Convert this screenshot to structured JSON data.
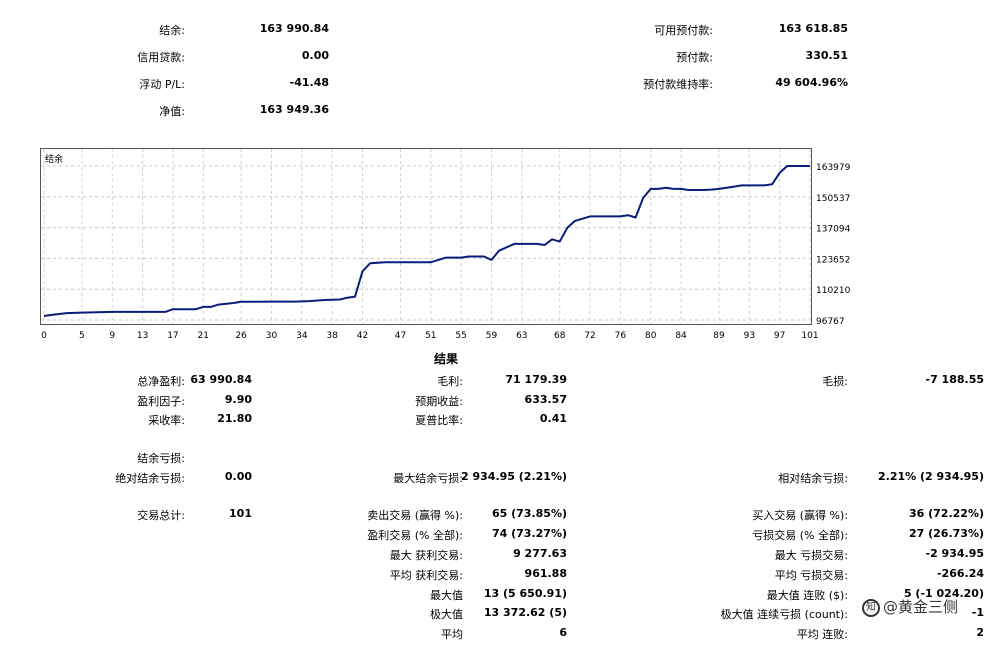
{
  "summary": {
    "balance_label": "结余:",
    "balance_value": "163 990.84",
    "credit_label": "信用贷款:",
    "credit_value": "0.00",
    "floating_label": "浮动 P/L:",
    "floating_value": "-41.48",
    "equity_label": "净值:",
    "equity_value": "163 949.36",
    "free_margin_label": "可用预付款:",
    "free_margin_value": "163 618.85",
    "margin_label": "预付款:",
    "margin_value": "330.51",
    "margin_level_label": "预付款维持率:",
    "margin_level_value": "49 604.96%"
  },
  "chart_data": {
    "type": "line",
    "legend": "结余",
    "x_ticks": [
      "0",
      "5",
      "9",
      "13",
      "17",
      "21",
      "26",
      "30",
      "34",
      "38",
      "42",
      "47",
      "51",
      "55",
      "59",
      "63",
      "68",
      "72",
      "76",
      "80",
      "84",
      "89",
      "93",
      "97",
      "101"
    ],
    "y_ticks": [
      "163979",
      "150537",
      "137094",
      "123652",
      "110210",
      "96767"
    ],
    "ylim": [
      96767,
      163979
    ],
    "xlim": [
      0,
      101
    ],
    "grid": true,
    "color": "#0b1d7a",
    "series": [
      {
        "x": [
          0,
          1,
          3,
          5,
          9,
          12,
          13,
          14,
          16,
          17,
          20,
          21,
          22,
          23,
          25,
          26,
          30,
          33,
          34,
          35,
          37,
          38,
          39,
          40,
          41,
          42,
          43,
          45,
          47,
          48,
          51,
          52,
          53,
          55,
          56,
          57,
          58,
          59,
          60,
          61,
          62,
          63,
          64,
          65,
          66,
          67,
          68,
          69,
          70,
          71,
          72,
          73,
          74,
          75,
          76,
          77,
          78,
          79,
          80,
          81,
          82,
          83,
          84,
          85,
          86,
          87,
          88,
          89,
          90,
          91,
          92,
          93,
          94,
          95,
          96,
          97,
          98,
          99,
          100,
          101
        ],
        "values": [
          98500,
          99000,
          99800,
          100000,
          100300,
          100300,
          100300,
          100300,
          100300,
          101500,
          101500,
          102500,
          102500,
          103500,
          104200,
          104700,
          104800,
          104800,
          104900,
          105000,
          105500,
          105600,
          105700,
          106500,
          107000,
          118000,
          121500,
          122000,
          122000,
          122000,
          122000,
          123000,
          124000,
          124000,
          124500,
          124500,
          124500,
          123000,
          127000,
          128500,
          130000,
          130000,
          130000,
          130000,
          129500,
          132000,
          131000,
          137000,
          140000,
          141000,
          142000,
          142000,
          142000,
          142000,
          142000,
          142500,
          141500,
          150000,
          154000,
          154000,
          154500,
          154000,
          154000,
          153500,
          153500,
          153500,
          153700,
          154000,
          154500,
          155000,
          155500,
          155500,
          155500,
          155500,
          156000,
          161000,
          163979,
          163979,
          163979,
          163979
        ]
      }
    ]
  },
  "results": {
    "heading": "结果",
    "net_profit_label": "总净盈利:",
    "net_profit_value": "63 990.84",
    "gross_profit_label": "毛利:",
    "gross_profit_value": "71 179.39",
    "gross_loss_label": "毛损:",
    "gross_loss_value": "-7 188.55",
    "profit_factor_label": "盈利因子:",
    "profit_factor_value": "9.90",
    "expected_payoff_label": "预期收益:",
    "expected_payoff_value": "633.57",
    "recovery_label": "采收率:",
    "recovery_value": "21.80",
    "sharpe_label": "夏普比率:",
    "sharpe_value": "0.41",
    "balance_dd_label": "结余亏损:",
    "abs_dd_label": "绝对结余亏损:",
    "abs_dd_value": "0.00",
    "max_dd_label": "最大结余亏损:",
    "max_dd_value": "2 934.95 (2.21%)",
    "rel_dd_label": "相对结余亏损:",
    "rel_dd_value": "2.21% (2 934.95)",
    "total_trades_label": "交易总计:",
    "total_trades_value": "101",
    "short_trades_label": "卖出交易 (赢得 %):",
    "short_trades_value": "65 (73.85%)",
    "long_trades_label": "买入交易 (赢得 %):",
    "long_trades_value": "36 (72.22%)",
    "profit_trades_label": "盈利交易 (% 全部):",
    "profit_trades_value": "74 (73.27%)",
    "loss_trades_label": "亏损交易 (% 全部):",
    "loss_trades_value": "27 (26.73%)",
    "largest_profit_label": "最大 获利交易:",
    "largest_profit_value": "9 277.63",
    "largest_loss_label": "最大 亏损交易:",
    "largest_loss_value": "-2 934.95",
    "avg_profit_label": "平均 获利交易:",
    "avg_profit_value": "961.88",
    "avg_loss_label": "平均 亏损交易:",
    "avg_loss_value": "-266.24",
    "max_cons_wins_label": "最大值",
    "max_cons_wins_value": "13 (5 650.91)",
    "max_cons_losses_label": "最大值 连败 ($):",
    "max_cons_losses_value": "5 (-1 024.20)",
    "maximal_wins_label": "极大值",
    "maximal_wins_value": "13 372.62 (5)",
    "maximal_losses_label": "极大值 连续亏损 (count):",
    "maximal_losses_value": "-1 ",
    "avg_wins_label": "平均",
    "avg_wins_value": "6",
    "avg_losses_label": "平均 连败:",
    "avg_losses_value": "2"
  },
  "watermark": {
    "icon_text": "知",
    "text": "@黄金三侧"
  }
}
